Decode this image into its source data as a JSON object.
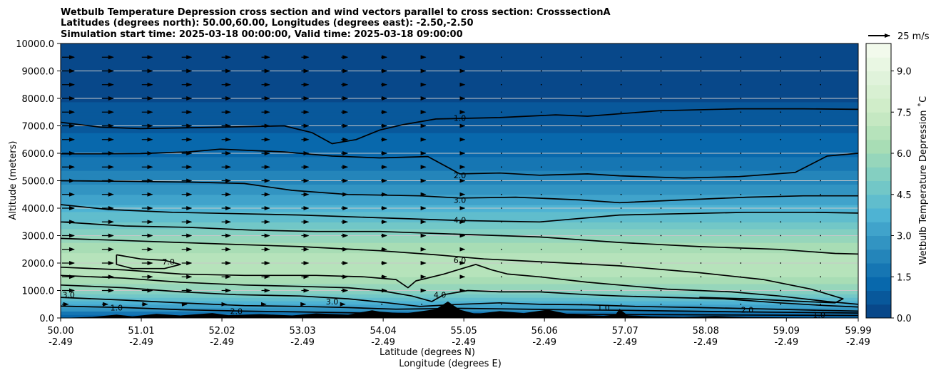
{
  "chart_data": {
    "type": "contourf",
    "title_lines": [
      "Wetbulb Temperature Depression cross section and wind vectors parallel to cross section: CrosssectionA",
      "Latitudes (degrees north): 50.00,60.00, Longitudes (degrees east): -2.50,-2.50",
      "Simulation start time: 2025-03-18 00:00:00, Valid time: 2025-03-18 09:00:00"
    ],
    "xlabel_lat": "Latitude (degrees N)",
    "xlabel_lon": "Longitude (degrees E)",
    "ylabel": "Altitude (meters)",
    "x_range": [
      50.0,
      59.99
    ],
    "ylim": [
      0,
      10000
    ],
    "x_ticks": [
      {
        "lat": "50.00",
        "lon": "-2.49",
        "x": 50.0
      },
      {
        "lat": "51.01",
        "lon": "-2.49",
        "x": 51.01
      },
      {
        "lat": "52.02",
        "lon": "-2.49",
        "x": 52.02
      },
      {
        "lat": "53.03",
        "lon": "-2.49",
        "x": 53.03
      },
      {
        "lat": "54.04",
        "lon": "-2.49",
        "x": 54.04
      },
      {
        "lat": "55.05",
        "lon": "-2.49",
        "x": 55.05
      },
      {
        "lat": "56.06",
        "lon": "-2.49",
        "x": 56.06
      },
      {
        "lat": "57.07",
        "lon": "-2.49",
        "x": 57.07
      },
      {
        "lat": "58.08",
        "lon": "-2.49",
        "x": 58.08
      },
      {
        "lat": "59.09",
        "lon": "-2.49",
        "x": 59.09
      },
      {
        "lat": "59.99",
        "lon": "-2.49",
        "x": 59.99
      }
    ],
    "y_ticks": [
      {
        "label": "0.0",
        "value": 0
      },
      {
        "label": "1000.0",
        "value": 1000
      },
      {
        "label": "2000.0",
        "value": 2000
      },
      {
        "label": "3000.0",
        "value": 3000
      },
      {
        "label": "4000.0",
        "value": 4000
      },
      {
        "label": "5000.0",
        "value": 5000
      },
      {
        "label": "6000.0",
        "value": 6000
      },
      {
        "label": "7000.0",
        "value": 7000
      },
      {
        "label": "8000.0",
        "value": 8000
      },
      {
        "label": "9000.0",
        "value": 9000
      },
      {
        "label": "10000.0",
        "value": 10000
      }
    ],
    "grid": "horizontal",
    "colorbar": {
      "label": "Wetbulb Temperature Depression ˚C",
      "range": [
        0,
        10
      ],
      "ticks": [
        {
          "label": "0.0",
          "value": 0
        },
        {
          "label": "1.5",
          "value": 1.5
        },
        {
          "label": "3.0",
          "value": 3.0
        },
        {
          "label": "4.5",
          "value": 4.5
        },
        {
          "label": "6.0",
          "value": 6.0
        },
        {
          "label": "7.5",
          "value": 7.5
        },
        {
          "label": "9.0",
          "value": 9.0
        }
      ],
      "colormap": "GnBu",
      "n_levels": 20
    },
    "quiver_key": {
      "label": "25 m/s"
    },
    "field_profile": [
      {
        "height": 0,
        "value": 1.0
      },
      {
        "height": 500,
        "value": 3.5
      },
      {
        "height": 1000,
        "value": 5.5
      },
      {
        "height": 1700,
        "value": 6.8
      },
      {
        "height": 2200,
        "value": 6.9
      },
      {
        "height": 2700,
        "value": 6.0
      },
      {
        "height": 3500,
        "value": 4.6
      },
      {
        "height": 4200,
        "value": 3.4
      },
      {
        "height": 5000,
        "value": 2.3
      },
      {
        "height": 6000,
        "value": 1.4
      },
      {
        "height": 7000,
        "value": 0.9
      },
      {
        "height": 8000,
        "value": 0.45
      },
      {
        "height": 9000,
        "value": 0.25
      },
      {
        "height": 10000,
        "value": 0.15
      }
    ],
    "contours": [
      {
        "level": "1.0",
        "points": [
          [
            50.0,
            7130
          ],
          [
            50.5,
            6950
          ],
          [
            51.0,
            6900
          ],
          [
            52.0,
            6950
          ],
          [
            52.8,
            7000
          ],
          [
            53.15,
            6750
          ],
          [
            53.4,
            6350
          ],
          [
            53.7,
            6500
          ],
          [
            54.0,
            6850
          ],
          [
            54.3,
            7050
          ],
          [
            54.7,
            7250
          ],
          [
            55.5,
            7300
          ],
          [
            56.2,
            7400
          ],
          [
            56.6,
            7350
          ],
          [
            57.5,
            7550
          ],
          [
            58.5,
            7620
          ],
          [
            59.3,
            7620
          ],
          [
            59.99,
            7600
          ]
        ],
        "labels": [
          {
            "x": 55.0,
            "y": 7280
          }
        ]
      },
      {
        "level": "2.0",
        "points": [
          [
            50.0,
            5980
          ],
          [
            50.5,
            5980
          ],
          [
            51.0,
            5990
          ],
          [
            51.6,
            6050
          ],
          [
            52.0,
            6150
          ],
          [
            52.8,
            6050
          ],
          [
            53.4,
            5900
          ],
          [
            54.0,
            5830
          ],
          [
            54.6,
            5880
          ],
          [
            55.0,
            5250
          ],
          [
            55.5,
            5280
          ],
          [
            56.0,
            5200
          ],
          [
            56.6,
            5250
          ],
          [
            57.0,
            5180
          ],
          [
            57.8,
            5100
          ],
          [
            58.5,
            5150
          ],
          [
            59.2,
            5300
          ],
          [
            59.6,
            5900
          ],
          [
            59.99,
            6000
          ]
        ],
        "labels": [
          {
            "x": 55.0,
            "y": 5200
          }
        ]
      },
      {
        "level": "3.0",
        "points": [
          [
            50.0,
            5000
          ],
          [
            50.8,
            4980
          ],
          [
            51.6,
            4950
          ],
          [
            52.3,
            4900
          ],
          [
            52.9,
            4650
          ],
          [
            53.6,
            4500
          ],
          [
            54.5,
            4450
          ],
          [
            55.0,
            4370
          ],
          [
            55.7,
            4400
          ],
          [
            56.5,
            4300
          ],
          [
            57.0,
            4200
          ],
          [
            57.8,
            4300
          ],
          [
            58.6,
            4400
          ],
          [
            59.3,
            4450
          ],
          [
            59.99,
            4450
          ]
        ],
        "labels": [
          {
            "x": 55.0,
            "y": 4300
          }
        ]
      },
      {
        "level": "4.0",
        "points": [
          [
            50.0,
            4130
          ],
          [
            50.6,
            3950
          ],
          [
            51.4,
            3850
          ],
          [
            52.2,
            3800
          ],
          [
            53.0,
            3750
          ],
          [
            54.0,
            3650
          ],
          [
            55.0,
            3550
          ],
          [
            56.0,
            3500
          ],
          [
            57.0,
            3750
          ],
          [
            57.8,
            3800
          ],
          [
            58.6,
            3850
          ],
          [
            59.4,
            3850
          ],
          [
            59.99,
            3820
          ]
        ],
        "labels": [
          {
            "x": 55.0,
            "y": 3570
          }
        ]
      },
      {
        "level": "5.0",
        "points": [
          [
            50.0,
            3500
          ],
          [
            50.8,
            3350
          ],
          [
            51.6,
            3300
          ],
          [
            52.4,
            3200
          ],
          [
            53.2,
            3150
          ],
          [
            54.0,
            3150
          ],
          [
            55.0,
            3050
          ],
          [
            56.0,
            2950
          ],
          [
            57.0,
            2750
          ],
          [
            58.0,
            2600
          ],
          [
            59.0,
            2500
          ],
          [
            59.7,
            2350
          ],
          [
            59.99,
            2330
          ]
        ],
        "labels": []
      },
      {
        "level": "6.0",
        "points": [
          [
            50.0,
            2900
          ],
          [
            51.0,
            2800
          ],
          [
            52.0,
            2700
          ],
          [
            53.0,
            2600
          ],
          [
            54.0,
            2450
          ],
          [
            54.7,
            2300
          ],
          [
            55.3,
            2150
          ],
          [
            56.0,
            2050
          ],
          [
            57.0,
            1900
          ],
          [
            58.0,
            1650
          ],
          [
            58.8,
            1400
          ],
          [
            59.4,
            1050
          ],
          [
            59.8,
            700
          ],
          [
            59.7,
            550
          ],
          [
            59.3,
            600
          ],
          [
            58.6,
            700
          ],
          [
            58.0,
            750
          ]
        ],
        "labels": [
          {
            "x": 55.0,
            "y": 2100
          }
        ]
      },
      {
        "level": "7.0",
        "points": [
          [
            50.7,
            2300
          ],
          [
            51.0,
            2150
          ],
          [
            51.3,
            2100
          ],
          [
            51.5,
            1950
          ],
          [
            51.3,
            1800
          ],
          [
            50.9,
            1800
          ],
          [
            50.7,
            1950
          ],
          [
            50.7,
            2300
          ]
        ],
        "labels": [
          {
            "x": 51.35,
            "y": 2050
          }
        ]
      },
      {
        "level": "5.0",
        "points": [
          [
            50.0,
            1850
          ],
          [
            50.8,
            1750
          ],
          [
            51.5,
            1600
          ],
          [
            52.3,
            1550
          ],
          [
            53.2,
            1550
          ],
          [
            53.8,
            1500
          ],
          [
            54.2,
            1400
          ],
          [
            54.35,
            1100
          ],
          [
            54.45,
            1350
          ],
          [
            54.8,
            1600
          ],
          [
            55.2,
            1950
          ],
          [
            55.4,
            1750
          ],
          [
            55.6,
            1600
          ],
          [
            56.0,
            1500
          ],
          [
            56.6,
            1300
          ],
          [
            57.0,
            1200
          ],
          [
            57.6,
            1050
          ],
          [
            58.4,
            950
          ],
          [
            59.0,
            800
          ],
          [
            59.6,
            600
          ],
          [
            59.99,
            500
          ]
        ],
        "labels": []
      },
      {
        "level": "4.0",
        "points": [
          [
            50.0,
            1550
          ],
          [
            50.8,
            1450
          ],
          [
            51.5,
            1300
          ],
          [
            52.3,
            1200
          ],
          [
            53.0,
            1150
          ],
          [
            53.6,
            1100
          ],
          [
            54.0,
            1000
          ],
          [
            54.4,
            800
          ],
          [
            54.65,
            600
          ],
          [
            54.8,
            850
          ],
          [
            55.1,
            1000
          ],
          [
            55.5,
            950
          ],
          [
            56.0,
            950
          ],
          [
            56.6,
            850
          ],
          [
            57.0,
            800
          ],
          [
            57.6,
            750
          ],
          [
            58.3,
            700
          ],
          [
            59.0,
            550
          ],
          [
            59.6,
            450
          ],
          [
            59.99,
            400
          ]
        ],
        "labels": [
          {
            "x": 54.75,
            "y": 850
          }
        ]
      },
      {
        "level": "3.0",
        "points": [
          [
            50.0,
            1200
          ],
          [
            50.8,
            1100
          ],
          [
            51.5,
            950
          ],
          [
            52.2,
            850
          ],
          [
            53.0,
            800
          ],
          [
            53.6,
            700
          ],
          [
            54.1,
            550
          ],
          [
            54.5,
            420
          ],
          [
            55.0,
            500
          ],
          [
            55.5,
            550
          ],
          [
            56.0,
            500
          ],
          [
            56.6,
            480
          ],
          [
            57.2,
            420
          ],
          [
            58.0,
            380
          ],
          [
            58.8,
            330
          ],
          [
            59.5,
            280
          ],
          [
            59.99,
            250
          ]
        ],
        "labels": [
          {
            "x": 50.1,
            "y": 850
          },
          {
            "x": 53.4,
            "y": 600
          }
        ]
      },
      {
        "level": "2.0",
        "points": [
          [
            50.0,
            750
          ],
          [
            50.8,
            650
          ],
          [
            51.5,
            550
          ],
          [
            52.3,
            450
          ],
          [
            53.0,
            420
          ],
          [
            53.6,
            380
          ],
          [
            54.2,
            320
          ],
          [
            55.0,
            350
          ],
          [
            55.6,
            330
          ],
          [
            56.2,
            300
          ],
          [
            57.0,
            280
          ],
          [
            57.8,
            250
          ],
          [
            58.6,
            220
          ],
          [
            59.3,
            200
          ],
          [
            59.99,
            180
          ]
        ],
        "labels": [
          {
            "x": 52.2,
            "y": 250
          },
          {
            "x": 58.6,
            "y": 300
          }
        ]
      },
      {
        "level": "1.0",
        "points": [
          [
            50.0,
            430
          ],
          [
            50.8,
            380
          ],
          [
            51.5,
            300
          ],
          [
            52.3,
            250
          ],
          [
            53.0,
            220
          ],
          [
            53.8,
            180
          ],
          [
            54.5,
            160
          ],
          [
            55.2,
            150
          ],
          [
            56.0,
            140
          ],
          [
            56.8,
            130
          ],
          [
            57.6,
            120
          ],
          [
            58.4,
            110
          ],
          [
            59.2,
            100
          ],
          [
            59.99,
            90
          ]
        ],
        "labels": [
          {
            "x": 50.7,
            "y": 380
          },
          {
            "x": 56.8,
            "y": 380
          },
          {
            "x": 59.5,
            "y": 120
          }
        ]
      }
    ],
    "terrain": [
      [
        50.0,
        0
      ],
      [
        50.4,
        40
      ],
      [
        50.7,
        120
      ],
      [
        50.9,
        60
      ],
      [
        51.2,
        150
      ],
      [
        51.5,
        90
      ],
      [
        51.9,
        180
      ],
      [
        52.1,
        100
      ],
      [
        52.5,
        140
      ],
      [
        52.9,
        90
      ],
      [
        53.2,
        170
      ],
      [
        53.6,
        120
      ],
      [
        53.9,
        280
      ],
      [
        54.0,
        230
      ],
      [
        54.3,
        160
      ],
      [
        54.7,
        320
      ],
      [
        54.85,
        600
      ],
      [
        55.0,
        300
      ],
      [
        55.2,
        150
      ],
      [
        55.5,
        250
      ],
      [
        55.8,
        180
      ],
      [
        56.1,
        300
      ],
      [
        56.4,
        120
      ],
      [
        56.8,
        80
      ],
      [
        56.95,
        120
      ],
      [
        57.0,
        330
      ],
      [
        57.1,
        100
      ],
      [
        57.4,
        60
      ],
      [
        57.8,
        40
      ],
      [
        58.2,
        70
      ],
      [
        58.6,
        30
      ],
      [
        59.2,
        20
      ],
      [
        59.99,
        10
      ]
    ]
  }
}
